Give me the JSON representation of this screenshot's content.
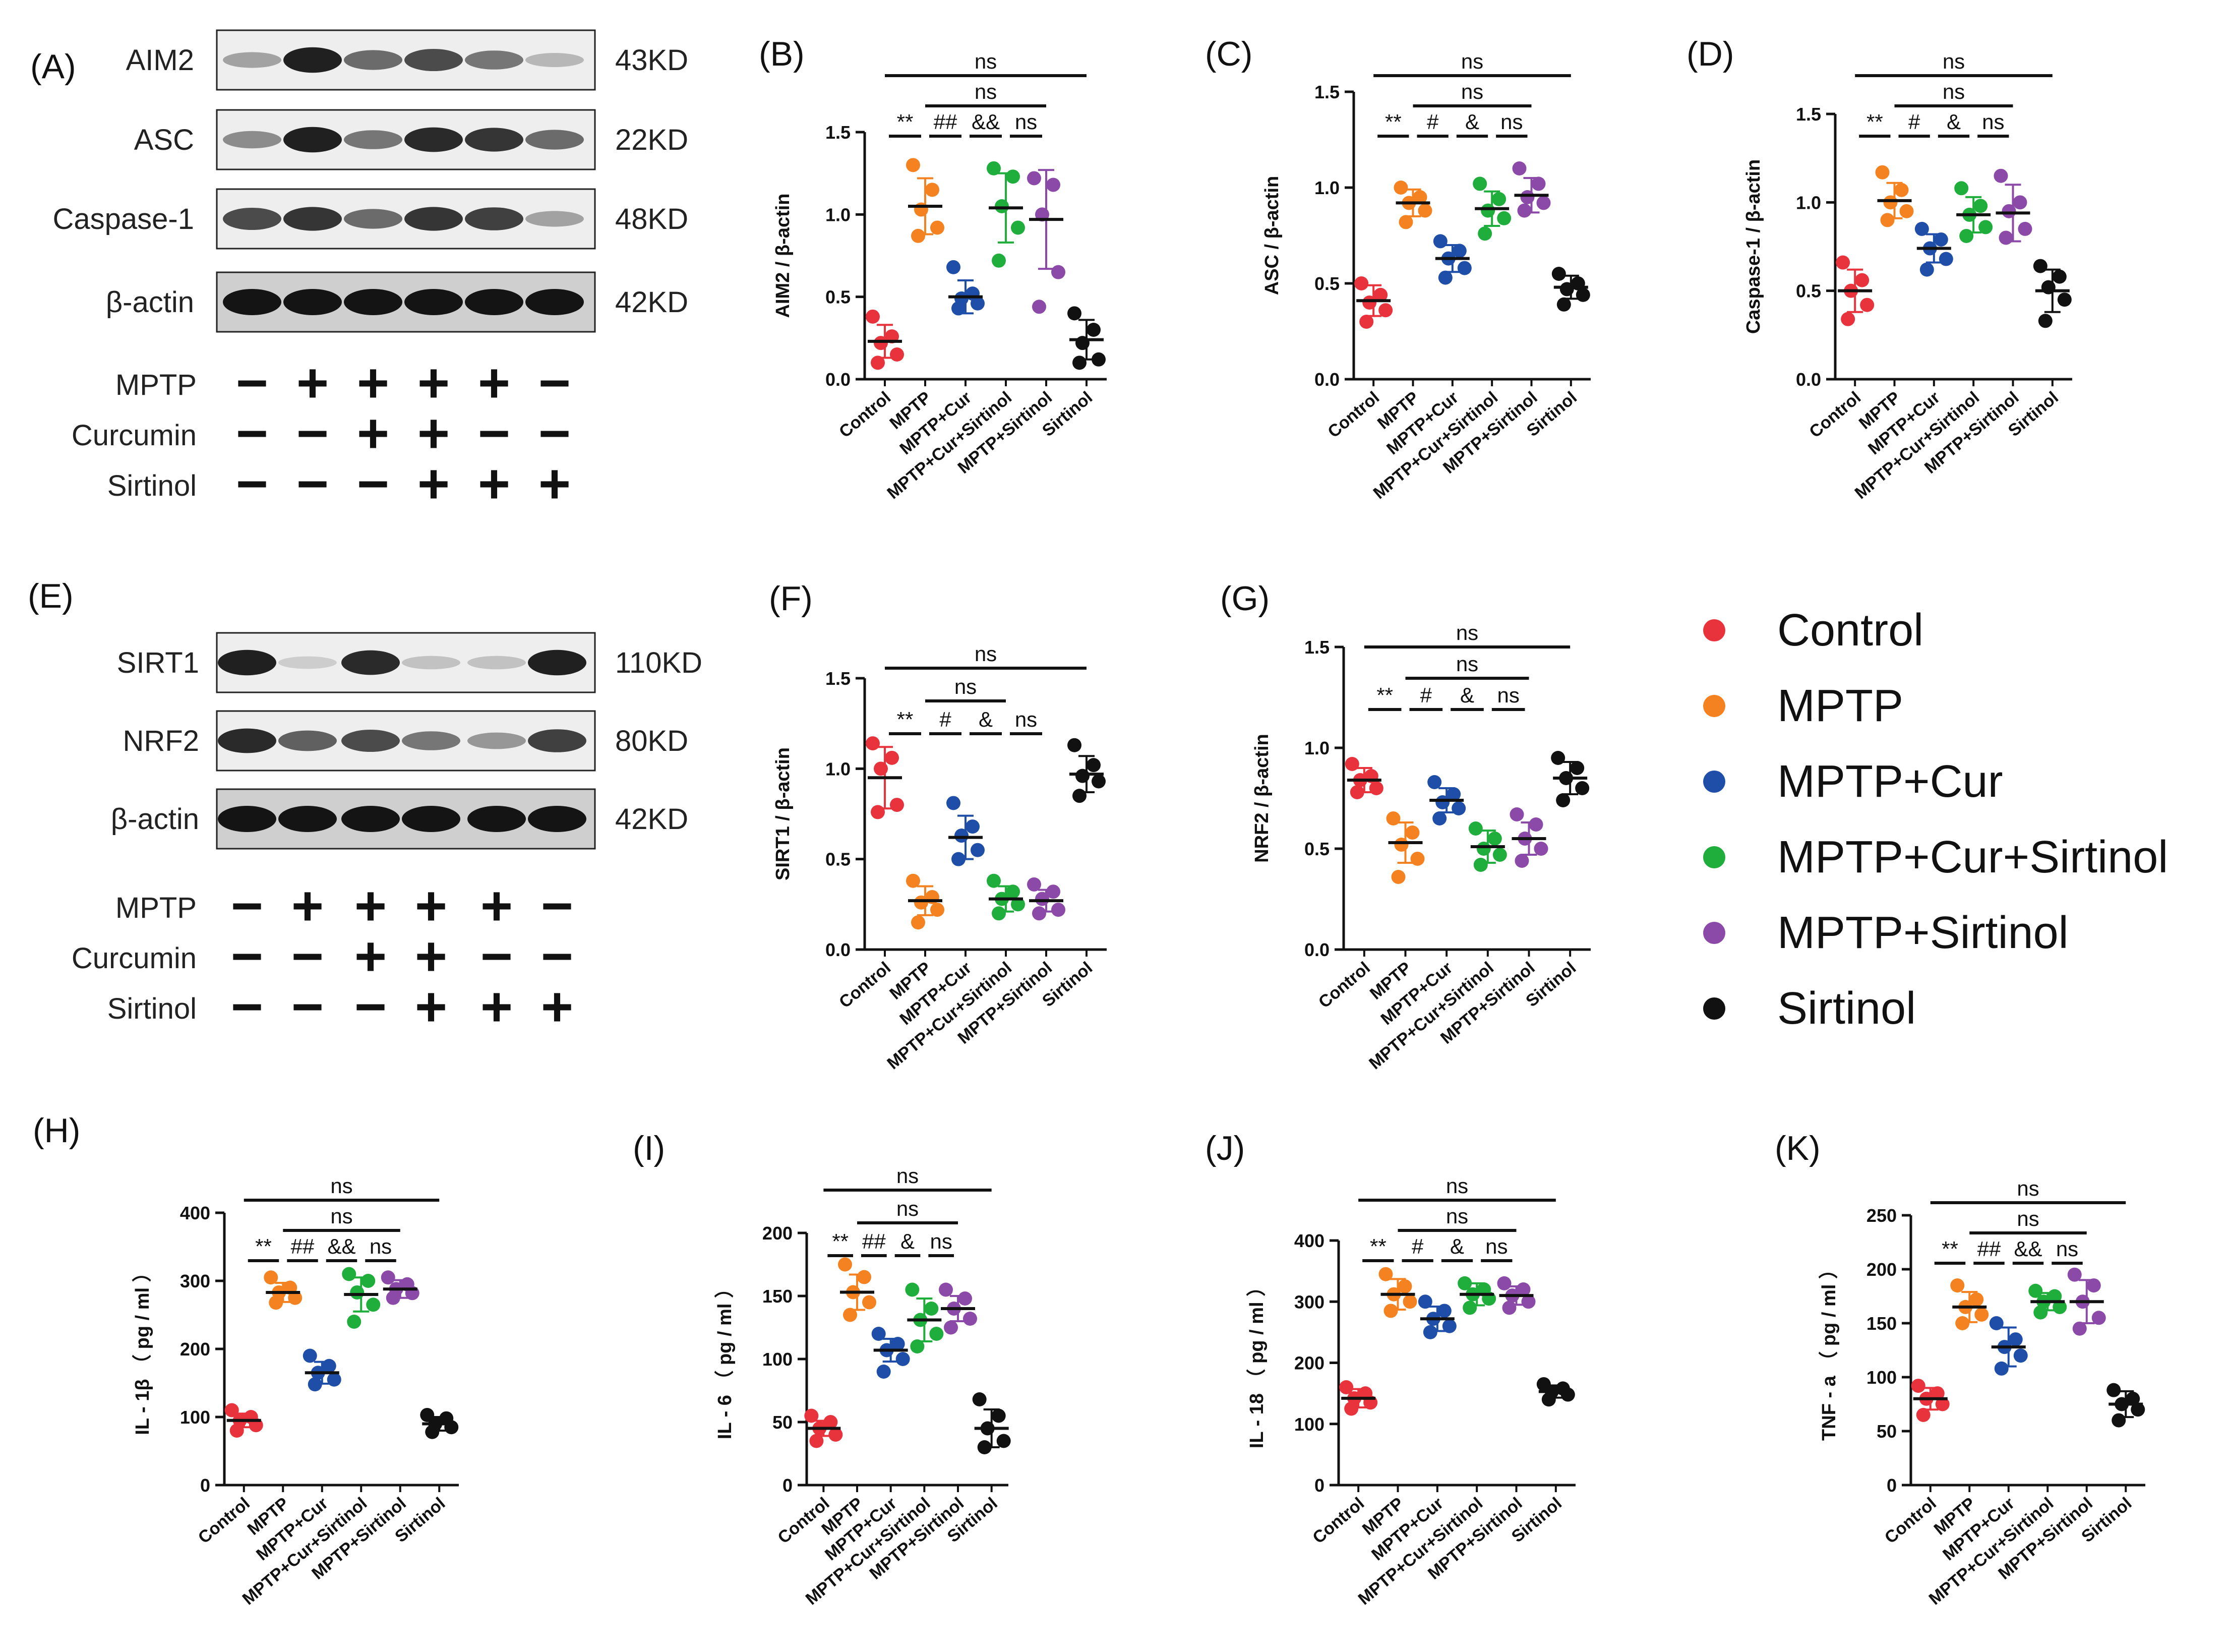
{
  "blot_a": {
    "panel_label": "(A)",
    "bands": [
      {
        "name": "AIM2",
        "size": "43KD",
        "intensity": [
          0.35,
          0.95,
          0.6,
          0.75,
          0.55,
          0.25
        ]
      },
      {
        "name": "ASC",
        "size": "22KD",
        "intensity": [
          0.45,
          0.95,
          0.55,
          0.9,
          0.85,
          0.6
        ]
      },
      {
        "name": "Caspase-1",
        "size": "48KD",
        "intensity": [
          0.75,
          0.85,
          0.6,
          0.85,
          0.8,
          0.35
        ]
      },
      {
        "name": "β-actin",
        "size": "42KD",
        "intensity": [
          1,
          1,
          1,
          1,
          1,
          1
        ]
      }
    ],
    "treatments": [
      {
        "name": "MPTP",
        "signs": [
          "−",
          "+",
          "+",
          "+",
          "+",
          "−"
        ]
      },
      {
        "name": "Curcumin",
        "signs": [
          "−",
          "−",
          "+",
          "+",
          "−",
          "−"
        ]
      },
      {
        "name": "Sirtinol",
        "signs": [
          "−",
          "−",
          "−",
          "+",
          "+",
          "+"
        ]
      }
    ]
  },
  "blot_e": {
    "panel_label": "(E)",
    "bands": [
      {
        "name": "SIRT1",
        "size": "110KD",
        "intensity": [
          0.95,
          0.15,
          0.9,
          0.2,
          0.2,
          0.95
        ]
      },
      {
        "name": "NRF2",
        "size": "80KD",
        "intensity": [
          0.9,
          0.65,
          0.75,
          0.55,
          0.4,
          0.8
        ]
      },
      {
        "name": "β-actin",
        "size": "42KD",
        "intensity": [
          1,
          1,
          1,
          1,
          1,
          1
        ]
      }
    ],
    "treatments": [
      {
        "name": "MPTP",
        "signs": [
          "−",
          "+",
          "+",
          "+",
          "+",
          "−"
        ]
      },
      {
        "name": "Curcumin",
        "signs": [
          "−",
          "−",
          "+",
          "+",
          "−",
          "−"
        ]
      },
      {
        "name": "Sirtinol",
        "signs": [
          "−",
          "−",
          "−",
          "+",
          "+",
          "+"
        ]
      }
    ]
  },
  "legend": {
    "entries": [
      {
        "label": "Control",
        "color": "#e8323c"
      },
      {
        "label": "MPTP",
        "color": "#f58220"
      },
      {
        "label": "MPTP+Cur",
        "color": "#1f4ea8"
      },
      {
        "label": "MPTP+Cur+Sirtinol",
        "color": "#1fad3c"
      },
      {
        "label": "MPTP+Sirtinol",
        "color": "#8c4aa8"
      },
      {
        "label": "Sirtinol",
        "color": "#111111"
      }
    ]
  },
  "chart_data": [
    {
      "id": "B",
      "label": "(B)",
      "type": "scatter",
      "ylabel": "AIM2 /  β-actin",
      "ylim": [
        0,
        1.5
      ],
      "ticks": [
        "0.0",
        "0.5",
        "1.0",
        "1.5"
      ],
      "categories": [
        "Control",
        "MPTP",
        "MPTP+Cur",
        "MPTP+Cur+Sirtinol",
        "MPTP+Sirtinol",
        "Sirtinol"
      ],
      "mean": [
        0.23,
        1.05,
        0.5,
        1.04,
        0.97,
        0.24
      ],
      "sd": [
        0.1,
        0.17,
        0.1,
        0.21,
        0.3,
        0.12
      ],
      "points": [
        [
          0.38,
          0.26,
          0.22,
          0.15,
          0.1
        ],
        [
          1.3,
          1.15,
          1.03,
          0.92,
          0.87
        ],
        [
          0.68,
          0.52,
          0.49,
          0.46,
          0.43
        ],
        [
          1.28,
          1.23,
          1.05,
          0.92,
          0.72
        ],
        [
          1.22,
          1.18,
          1.0,
          0.65,
          0.44
        ],
        [
          0.4,
          0.3,
          0.22,
          0.12,
          0.1
        ]
      ],
      "brackets": [
        {
          "from": 0,
          "to": 5,
          "text": "ns",
          "level": 2
        },
        {
          "from": 1,
          "to": 4,
          "text": "ns",
          "level": 1
        },
        {
          "from": 0,
          "to": 1,
          "text": "**",
          "level": 0
        },
        {
          "from": 1,
          "to": 2,
          "text": "##",
          "level": 0
        },
        {
          "from": 2,
          "to": 3,
          "text": "&&",
          "level": 0
        },
        {
          "from": 3,
          "to": 4,
          "text": "ns",
          "level": 0
        }
      ]
    },
    {
      "id": "C",
      "label": "(C)",
      "type": "scatter",
      "ylabel": "ASC /  β-actin",
      "ylim": [
        0,
        1.5
      ],
      "ticks": [
        "0.0",
        "0.5",
        "1.0",
        "1.5"
      ],
      "categories": [
        "Control",
        "MPTP",
        "MPTP+Cur",
        "MPTP+Cur+Sirtinol",
        "MPTP+Sirtinol",
        "Sirtinol"
      ],
      "mean": [
        0.41,
        0.92,
        0.63,
        0.89,
        0.96,
        0.48
      ],
      "sd": [
        0.08,
        0.07,
        0.07,
        0.09,
        0.09,
        0.06
      ],
      "points": [
        [
          0.5,
          0.44,
          0.4,
          0.36,
          0.3
        ],
        [
          1.0,
          0.95,
          0.92,
          0.88,
          0.82
        ],
        [
          0.72,
          0.67,
          0.63,
          0.58,
          0.53
        ],
        [
          1.02,
          0.94,
          0.88,
          0.84,
          0.76
        ],
        [
          1.1,
          1.02,
          0.95,
          0.92,
          0.88
        ],
        [
          0.55,
          0.5,
          0.47,
          0.44,
          0.39
        ]
      ],
      "brackets": [
        {
          "from": 0,
          "to": 5,
          "text": "ns",
          "level": 2
        },
        {
          "from": 1,
          "to": 4,
          "text": "ns",
          "level": 1
        },
        {
          "from": 0,
          "to": 1,
          "text": "**",
          "level": 0
        },
        {
          "from": 1,
          "to": 2,
          "text": "#",
          "level": 0
        },
        {
          "from": 2,
          "to": 3,
          "text": "&",
          "level": 0
        },
        {
          "from": 3,
          "to": 4,
          "text": "ns",
          "level": 0
        }
      ]
    },
    {
      "id": "D",
      "label": "(D)",
      "type": "scatter",
      "ylabel": "Caspase-1 /  β-actin",
      "ylim": [
        0,
        1.5
      ],
      "ticks": [
        "0.0",
        "0.5",
        "1.0",
        "1.5"
      ],
      "categories": [
        "Control",
        "MPTP",
        "MPTP+Cur",
        "MPTP+Cur+Sirtinol",
        "MPTP+Sirtinol",
        "Sirtinol"
      ],
      "mean": [
        0.5,
        1.01,
        0.74,
        0.93,
        0.94,
        0.5
      ],
      "sd": [
        0.12,
        0.1,
        0.08,
        0.1,
        0.16,
        0.12
      ],
      "points": [
        [
          0.66,
          0.56,
          0.5,
          0.42,
          0.34
        ],
        [
          1.17,
          1.07,
          1.0,
          0.95,
          0.9
        ],
        [
          0.85,
          0.79,
          0.74,
          0.68,
          0.62
        ],
        [
          1.08,
          0.98,
          0.93,
          0.86,
          0.81
        ],
        [
          1.15,
          1.0,
          0.95,
          0.85,
          0.8
        ],
        [
          0.64,
          0.58,
          0.52,
          0.45,
          0.33
        ]
      ],
      "brackets": [
        {
          "from": 0,
          "to": 5,
          "text": "ns",
          "level": 2
        },
        {
          "from": 1,
          "to": 4,
          "text": "ns",
          "level": 1
        },
        {
          "from": 0,
          "to": 1,
          "text": "**",
          "level": 0
        },
        {
          "from": 1,
          "to": 2,
          "text": "#",
          "level": 0
        },
        {
          "from": 2,
          "to": 3,
          "text": "&",
          "level": 0
        },
        {
          "from": 3,
          "to": 4,
          "text": "ns",
          "level": 0
        }
      ]
    },
    {
      "id": "F",
      "label": "(F)",
      "type": "scatter",
      "ylabel": "SIRT1 /  β-actin",
      "ylim": [
        0,
        1.5
      ],
      "ticks": [
        "0.0",
        "0.5",
        "1.0",
        "1.5"
      ],
      "categories": [
        "Control",
        "MPTP",
        "MPTP+Cur",
        "MPTP+Cur+Sirtinol",
        "MPTP+Sirtinol",
        "Sirtinol"
      ],
      "mean": [
        0.95,
        0.27,
        0.62,
        0.28,
        0.27,
        0.97
      ],
      "sd": [
        0.17,
        0.08,
        0.12,
        0.07,
        0.06,
        0.1
      ],
      "points": [
        [
          1.14,
          1.06,
          1.0,
          0.8,
          0.76
        ],
        [
          0.38,
          0.29,
          0.26,
          0.22,
          0.15
        ],
        [
          0.81,
          0.68,
          0.63,
          0.55,
          0.5
        ],
        [
          0.38,
          0.32,
          0.28,
          0.25,
          0.2
        ],
        [
          0.36,
          0.32,
          0.28,
          0.22,
          0.2
        ],
        [
          1.13,
          1.02,
          0.96,
          0.93,
          0.85
        ]
      ],
      "brackets": [
        {
          "from": 0,
          "to": 5,
          "text": "ns",
          "level": 2
        },
        {
          "from": 1,
          "to": 3,
          "text": "ns",
          "level": 1
        },
        {
          "from": 0,
          "to": 1,
          "text": "**",
          "level": 0
        },
        {
          "from": 1,
          "to": 2,
          "text": "#",
          "level": 0
        },
        {
          "from": 2,
          "to": 3,
          "text": "&",
          "level": 0
        },
        {
          "from": 3,
          "to": 4,
          "text": "ns",
          "level": 0
        }
      ]
    },
    {
      "id": "G",
      "label": "(G)",
      "type": "scatter",
      "ylabel": "NRF2 /  β-actin",
      "ylim": [
        0,
        1.5
      ],
      "ticks": [
        "0.0",
        "0.5",
        "1.0",
        "1.5"
      ],
      "categories": [
        "Control",
        "MPTP",
        "MPTP+Cur",
        "MPTP+Cur+Sirtinol",
        "MPTP+Sirtinol",
        "Sirtinol"
      ],
      "mean": [
        0.84,
        0.53,
        0.74,
        0.51,
        0.55,
        0.85
      ],
      "sd": [
        0.06,
        0.1,
        0.06,
        0.08,
        0.08,
        0.08
      ],
      "points": [
        [
          0.92,
          0.86,
          0.84,
          0.8,
          0.78
        ],
        [
          0.65,
          0.58,
          0.52,
          0.45,
          0.36
        ],
        [
          0.83,
          0.77,
          0.73,
          0.7,
          0.65
        ],
        [
          0.6,
          0.55,
          0.5,
          0.47,
          0.42
        ],
        [
          0.67,
          0.62,
          0.55,
          0.5,
          0.44
        ],
        [
          0.95,
          0.9,
          0.85,
          0.8,
          0.74
        ]
      ],
      "brackets": [
        {
          "from": 0,
          "to": 5,
          "text": "ns",
          "level": 2
        },
        {
          "from": 1,
          "to": 4,
          "text": "ns",
          "level": 1
        },
        {
          "from": 0,
          "to": 1,
          "text": "**",
          "level": 0
        },
        {
          "from": 1,
          "to": 2,
          "text": "#",
          "level": 0
        },
        {
          "from": 2,
          "to": 3,
          "text": "&",
          "level": 0
        },
        {
          "from": 3,
          "to": 4,
          "text": "ns",
          "level": 0
        }
      ]
    },
    {
      "id": "H",
      "label": "(H)",
      "type": "scatter",
      "ylabel": "IL - 1β （ pg / ml ）",
      "ylim": [
        0,
        400
      ],
      "ticks": [
        "0",
        "100",
        "200",
        "300",
        "400"
      ],
      "categories": [
        "Control",
        "MPTP",
        "MPTP+Cur",
        "MPTP+Cur+Sirtinol",
        "MPTP+Sirtinol",
        "Sirtinol"
      ],
      "mean": [
        95,
        283,
        165,
        280,
        288,
        90
      ],
      "sd": [
        10,
        14,
        16,
        25,
        13,
        10
      ],
      "points": [
        [
          110,
          100,
          95,
          88,
          80
        ],
        [
          305,
          290,
          283,
          275,
          268
        ],
        [
          190,
          175,
          165,
          155,
          148
        ],
        [
          310,
          300,
          283,
          265,
          240
        ],
        [
          305,
          295,
          288,
          282,
          275
        ],
        [
          103,
          98,
          90,
          85,
          78
        ]
      ],
      "brackets": [
        {
          "from": 0,
          "to": 5,
          "text": "ns",
          "level": 2
        },
        {
          "from": 1,
          "to": 4,
          "text": "ns",
          "level": 1
        },
        {
          "from": 0,
          "to": 1,
          "text": "**",
          "level": 0
        },
        {
          "from": 1,
          "to": 2,
          "text": "##",
          "level": 0
        },
        {
          "from": 2,
          "to": 3,
          "text": "&&",
          "level": 0
        },
        {
          "from": 3,
          "to": 4,
          "text": "ns",
          "level": 0
        }
      ]
    },
    {
      "id": "I",
      "label": "(I)",
      "type": "scatter",
      "ylabel": "IL - 6 （ pg / ml ）",
      "ylim": [
        0,
        200
      ],
      "ticks": [
        "0",
        "50",
        "100",
        "150",
        "200"
      ],
      "categories": [
        "Control",
        "MPTP",
        "MPTP+Cur",
        "MPTP+Cur+Sirtinol",
        "MPTP+Sirtinol",
        "Sirtinol"
      ],
      "mean": [
        45,
        153,
        107,
        131,
        140,
        45
      ],
      "sd": [
        6,
        14,
        9,
        17,
        10,
        15
      ],
      "points": [
        [
          55,
          50,
          45,
          40,
          35
        ],
        [
          175,
          165,
          153,
          145,
          135
        ],
        [
          120,
          112,
          107,
          100,
          90
        ],
        [
          155,
          140,
          131,
          120,
          110
        ],
        [
          155,
          148,
          140,
          132,
          125
        ],
        [
          68,
          55,
          45,
          35,
          30
        ]
      ],
      "brackets": [
        {
          "from": 0,
          "to": 5,
          "text": "ns",
          "level": 2
        },
        {
          "from": 1,
          "to": 4,
          "text": "ns",
          "level": 1
        },
        {
          "from": 0,
          "to": 1,
          "text": "**",
          "level": 0
        },
        {
          "from": 1,
          "to": 2,
          "text": "##",
          "level": 0
        },
        {
          "from": 2,
          "to": 3,
          "text": "&",
          "level": 0
        },
        {
          "from": 3,
          "to": 4,
          "text": "ns",
          "level": 0
        }
      ]
    },
    {
      "id": "J",
      "label": "(J)",
      "type": "scatter",
      "ylabel": "IL - 18 （ pg / ml ）",
      "ylim": [
        0,
        400
      ],
      "ticks": [
        "0",
        "100",
        "200",
        "300",
        "400"
      ],
      "categories": [
        "Control",
        "MPTP",
        "MPTP+Cur",
        "MPTP+Cur+Sirtinol",
        "MPTP+Sirtinol",
        "Sirtinol"
      ],
      "mean": [
        142,
        312,
        272,
        312,
        310,
        153
      ],
      "sd": [
        15,
        25,
        20,
        18,
        15,
        10
      ],
      "points": [
        [
          160,
          150,
          142,
          135,
          125
        ],
        [
          345,
          325,
          312,
          300,
          285
        ],
        [
          300,
          285,
          272,
          260,
          250
        ],
        [
          330,
          320,
          312,
          305,
          290
        ],
        [
          330,
          320,
          310,
          300,
          290
        ],
        [
          165,
          158,
          153,
          148,
          140
        ]
      ],
      "brackets": [
        {
          "from": 0,
          "to": 5,
          "text": "ns",
          "level": 2
        },
        {
          "from": 1,
          "to": 4,
          "text": "ns",
          "level": 1
        },
        {
          "from": 0,
          "to": 1,
          "text": "**",
          "level": 0
        },
        {
          "from": 1,
          "to": 2,
          "text": "#",
          "level": 0
        },
        {
          "from": 2,
          "to": 3,
          "text": "&",
          "level": 0
        },
        {
          "from": 3,
          "to": 4,
          "text": "ns",
          "level": 0
        }
      ]
    },
    {
      "id": "K",
      "label": "(K)",
      "type": "scatter",
      "ylabel": "TNF - a （ pg / ml ）",
      "ylim": [
        0,
        250
      ],
      "ticks": [
        "0",
        "50",
        "100",
        "150",
        "200",
        "250"
      ],
      "categories": [
        "Control",
        "MPTP",
        "MPTP+Cur",
        "MPTP+Cur+Sirtinol",
        "MPTP+Sirtinol",
        "Sirtinol"
      ],
      "mean": [
        80,
        165,
        128,
        170,
        170,
        75
      ],
      "sd": [
        10,
        14,
        18,
        8,
        20,
        12
      ],
      "points": [
        [
          92,
          85,
          80,
          75,
          65
        ],
        [
          185,
          172,
          165,
          158,
          150
        ],
        [
          150,
          135,
          128,
          120,
          108
        ],
        [
          180,
          175,
          170,
          165,
          160
        ],
        [
          195,
          185,
          170,
          155,
          145
        ],
        [
          88,
          80,
          75,
          70,
          60
        ]
      ],
      "brackets": [
        {
          "from": 0,
          "to": 5,
          "text": "ns",
          "level": 2
        },
        {
          "from": 1,
          "to": 4,
          "text": "ns",
          "level": 1
        },
        {
          "from": 0,
          "to": 1,
          "text": "**",
          "level": 0
        },
        {
          "from": 1,
          "to": 2,
          "text": "##",
          "level": 0
        },
        {
          "from": 2,
          "to": 3,
          "text": "&&",
          "level": 0
        },
        {
          "from": 3,
          "to": 4,
          "text": "ns",
          "level": 0
        }
      ]
    }
  ]
}
